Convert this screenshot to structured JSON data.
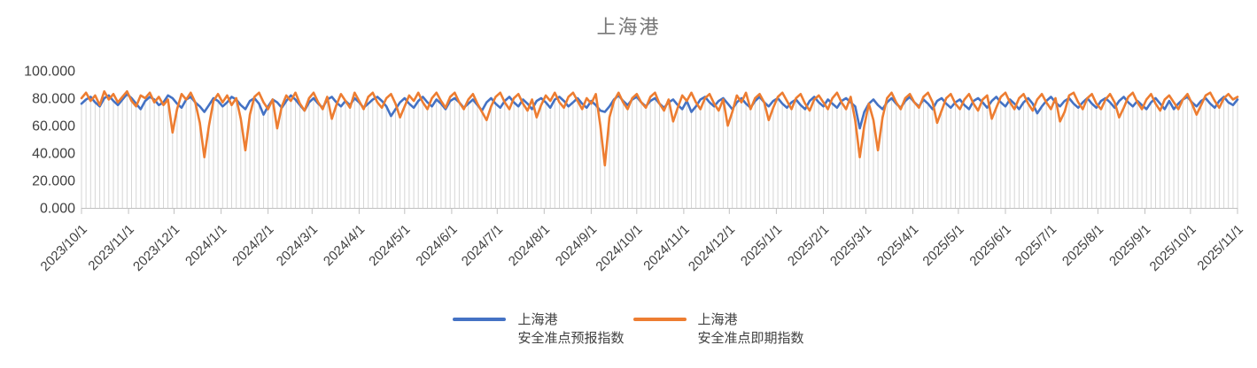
{
  "title": "上海港",
  "colors": {
    "series_forecast_blue": "#4472C4",
    "series_spot_orange": "#ED7D31",
    "drop_line": "#D6D6D6",
    "axis_line": "#C0C0C0",
    "tick_text": "#404040",
    "title_text": "#787878"
  },
  "y_axis": {
    "tick_labels": [
      "100.000",
      "80.000",
      "60.000",
      "40.000",
      "20.000",
      "0.000"
    ],
    "tick_values": [
      100,
      80,
      60,
      40,
      20,
      0
    ]
  },
  "x_axis": {
    "tick_labels": [
      "2023/10/1",
      "2023/11/1",
      "2023/12/1",
      "2024/1/1",
      "2024/2/1",
      "2024/3/1",
      "2024/4/1",
      "2024/5/1",
      "2024/6/1",
      "2024/7/1",
      "2024/8/1",
      "2024/9/1",
      "2024/10/1",
      "2024/11/1",
      "2024/12/1",
      "2025/1/1",
      "2025/2/1",
      "2025/3/1",
      "2025/4/1",
      "2025/5/1",
      "2025/6/1",
      "2025/7/1",
      "2025/8/1",
      "2025/9/1",
      "2025/10/1",
      "2025/11/1"
    ],
    "tick_day_offsets": [
      0,
      31,
      61,
      92,
      123,
      152,
      183,
      213,
      244,
      274,
      305,
      336,
      366,
      397,
      427,
      458,
      489,
      517,
      548,
      578,
      609,
      639,
      670,
      701,
      731,
      762
    ],
    "span_days": 762
  },
  "legend": {
    "items": [
      {
        "line1": "上海港",
        "line2": "安全准点预报指数",
        "color": "#4472C4"
      },
      {
        "line1": "上海港",
        "line2": "安全准点即期指数",
        "color": "#ED7D31"
      }
    ]
  },
  "chart_data": {
    "type": "line",
    "title": "上海港",
    "ylim": [
      0,
      100
    ],
    "y_tick_interval": 20,
    "grid": "vertical-drop-lines",
    "legend_position": "bottom",
    "x": {
      "start_date": "2023/10/1",
      "end_date": "2025/11/1",
      "step_days": 3,
      "num_points": 255
    },
    "series": [
      {
        "name": "上海港安全准点预报指数",
        "color": "#4472C4",
        "values": [
          76,
          79,
          81,
          77,
          74,
          80,
          82,
          78,
          75,
          79,
          83,
          80,
          76,
          72,
          78,
          81,
          79,
          75,
          77,
          82,
          80,
          76,
          73,
          79,
          81,
          77,
          74,
          70,
          75,
          80,
          78,
          74,
          77,
          81,
          79,
          75,
          72,
          78,
          80,
          76,
          68,
          74,
          79,
          77,
          73,
          78,
          82,
          79,
          75,
          71,
          77,
          80,
          76,
          73,
          79,
          81,
          77,
          74,
          78,
          75,
          80,
          77,
          73,
          76,
          79,
          81,
          78,
          74,
          67,
          72,
          77,
          80,
          76,
          73,
          78,
          81,
          77,
          74,
          79,
          76,
          72,
          78,
          80,
          77,
          73,
          76,
          79,
          75,
          71,
          77,
          80,
          76,
          73,
          78,
          81,
          77,
          74,
          79,
          76,
          72,
          78,
          80,
          77,
          73,
          79,
          81,
          78,
          74,
          77,
          80,
          76,
          73,
          78,
          75,
          71,
          70,
          74,
          79,
          82,
          78,
          75,
          79,
          81,
          77,
          74,
          78,
          80,
          76,
          73,
          77,
          79,
          75,
          72,
          78,
          70,
          74,
          79,
          81,
          77,
          74,
          78,
          80,
          76,
          72,
          77,
          80,
          76,
          73,
          78,
          81,
          77,
          74,
          78,
          80,
          76,
          73,
          77,
          79,
          75,
          72,
          78,
          81,
          77,
          74,
          79,
          76,
          73,
          78,
          80,
          77,
          74,
          58,
          70,
          76,
          79,
          75,
          72,
          77,
          80,
          76,
          73,
          78,
          81,
          77,
          74,
          79,
          76,
          72,
          78,
          80,
          76,
          73,
          77,
          79,
          75,
          72,
          78,
          80,
          77,
          73,
          78,
          81,
          77,
          74,
          79,
          76,
          72,
          77,
          80,
          76,
          69,
          74,
          78,
          81,
          77,
          74,
          78,
          80,
          76,
          73,
          77,
          80,
          76,
          73,
          78,
          80,
          77,
          73,
          78,
          81,
          77,
          74,
          78,
          75,
          72,
          77,
          80,
          76,
          72,
          78,
          72,
          76,
          79,
          81,
          77,
          74,
          78,
          80,
          76,
          73,
          78,
          81,
          77,
          75,
          79
        ]
      },
      {
        "name": "上海港安全准点即期指数",
        "color": "#ED7D31",
        "values": [
          80,
          84,
          78,
          82,
          75,
          85,
          79,
          83,
          77,
          81,
          85,
          78,
          74,
          82,
          80,
          84,
          77,
          81,
          75,
          79,
          55,
          72,
          83,
          79,
          84,
          77,
          62,
          37,
          60,
          78,
          83,
          77,
          82,
          75,
          80,
          65,
          42,
          68,
          81,
          84,
          77,
          72,
          79,
          58,
          74,
          82,
          78,
          84,
          76,
          71,
          80,
          84,
          77,
          72,
          81,
          65,
          75,
          83,
          78,
          73,
          84,
          78,
          72,
          81,
          84,
          77,
          73,
          80,
          83,
          76,
          66,
          74,
          82,
          78,
          84,
          77,
          72,
          80,
          84,
          78,
          73,
          81,
          84,
          77,
          72,
          79,
          83,
          76,
          70,
          64,
          74,
          81,
          84,
          77,
          72,
          80,
          83,
          76,
          71,
          79,
          66,
          75,
          82,
          78,
          84,
          77,
          73,
          81,
          84,
          78,
          72,
          80,
          76,
          83,
          60,
          31,
          66,
          78,
          84,
          77,
          72,
          80,
          83,
          77,
          73,
          81,
          84,
          76,
          71,
          79,
          63,
          73,
          82,
          78,
          84,
          77,
          72,
          80,
          83,
          76,
          71,
          79,
          60,
          70,
          82,
          77,
          84,
          72,
          80,
          83,
          77,
          64,
          73,
          81,
          84,
          78,
          72,
          80,
          83,
          76,
          71,
          79,
          82,
          77,
          72,
          80,
          84,
          77,
          72,
          81,
          64,
          37,
          60,
          76,
          64,
          42,
          66,
          80,
          84,
          77,
          72,
          80,
          83,
          77,
          73,
          81,
          84,
          77,
          62,
          71,
          80,
          83,
          76,
          72,
          79,
          83,
          76,
          71,
          79,
          82,
          65,
          73,
          81,
          84,
          77,
          72,
          80,
          83,
          76,
          71,
          79,
          83,
          77,
          72,
          80,
          63,
          70,
          82,
          84,
          77,
          72,
          80,
          83,
          76,
          72,
          79,
          83,
          77,
          66,
          73,
          81,
          84,
          77,
          72,
          79,
          83,
          76,
          71,
          79,
          82,
          77,
          72,
          79,
          83,
          76,
          68,
          75,
          82,
          84,
          78,
          73,
          80,
          83,
          79,
          81
        ]
      }
    ]
  }
}
